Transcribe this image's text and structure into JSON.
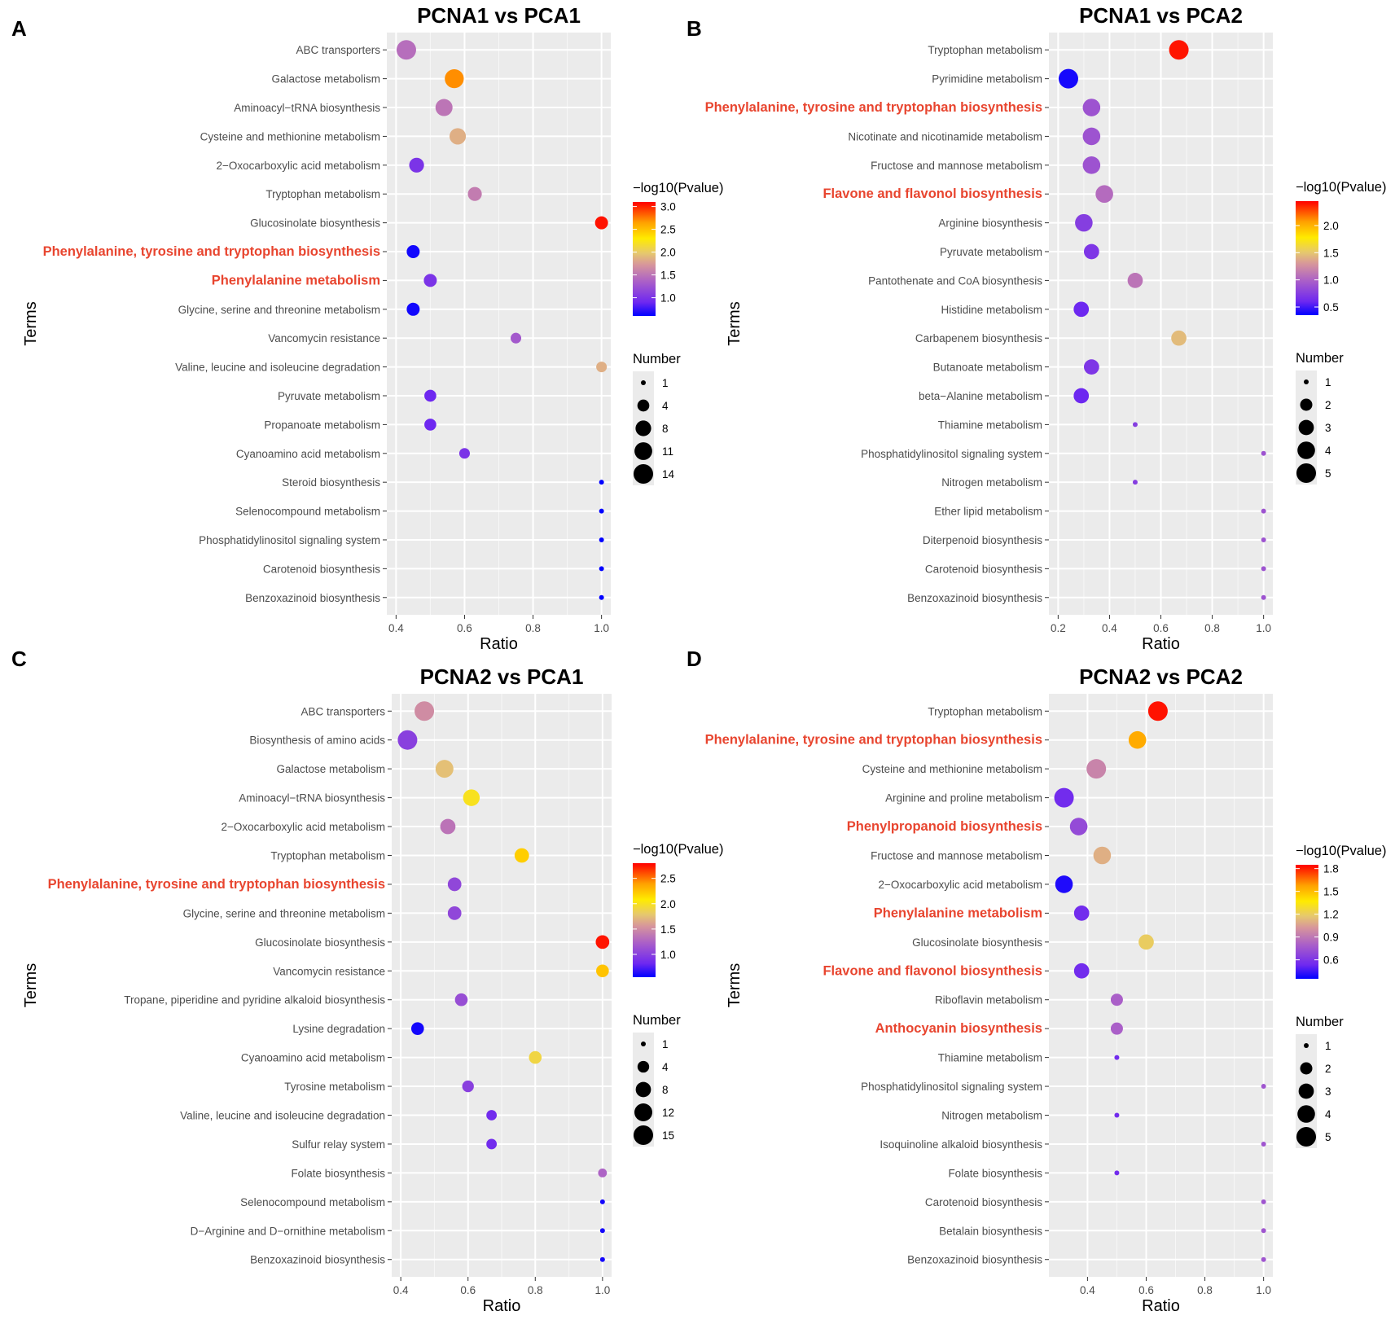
{
  "figure": {
    "legend_color_title": "−log10(Pvalue)",
    "legend_size_title": "Number",
    "xlabel": "Ratio",
    "ylabel": "Terms"
  },
  "chart_data": [
    {
      "type": "scatter",
      "panel": "A",
      "title": "PCNA1 vs PCA1",
      "xlabel": "Ratio",
      "ylabel": "Terms",
      "xlim": [
        0.4,
        1.0
      ],
      "xticks": [
        "0.4",
        "0.6",
        "0.8",
        "1.0"
      ],
      "color_scale": {
        "min": 0.6,
        "max": 3.1,
        "ticks": [
          "3.0",
          "2.5",
          "2.0",
          "1.5",
          "1.0"
        ]
      },
      "size_scale": {
        "min": 1,
        "max": 14,
        "ticks": [
          "1",
          "4",
          "8",
          "11",
          "14"
        ]
      },
      "terms": [
        {
          "name": "ABC transporters",
          "ratio": 0.43,
          "pvalue": 1.45,
          "number": 14,
          "highlight": false
        },
        {
          "name": "Galactose metabolism",
          "ratio": 0.57,
          "pvalue": 2.7,
          "number": 13,
          "highlight": false
        },
        {
          "name": "Aminoacyl−tRNA biosynthesis",
          "ratio": 0.54,
          "pvalue": 1.5,
          "number": 10,
          "highlight": false
        },
        {
          "name": "Cysteine and methionine metabolism",
          "ratio": 0.58,
          "pvalue": 1.85,
          "number": 9,
          "highlight": false
        },
        {
          "name": "2−Oxocarboxylic acid metabolism",
          "ratio": 0.46,
          "pvalue": 1.0,
          "number": 7,
          "highlight": false
        },
        {
          "name": "Tryptophan metabolism",
          "ratio": 0.63,
          "pvalue": 1.55,
          "number": 6,
          "highlight": false
        },
        {
          "name": "Glucosinolate biosynthesis",
          "ratio": 1.0,
          "pvalue": 3.05,
          "number": 5,
          "highlight": false
        },
        {
          "name": "Phenylalanine, tyrosine and tryptophan biosynthesis",
          "ratio": 0.45,
          "pvalue": 0.65,
          "number": 5,
          "highlight": true
        },
        {
          "name": "Phenylalanine metabolism",
          "ratio": 0.5,
          "pvalue": 1.0,
          "number": 5,
          "highlight": true
        },
        {
          "name": "Glycine, serine and threonine metabolism",
          "ratio": 0.45,
          "pvalue": 0.65,
          "number": 5,
          "highlight": false
        },
        {
          "name": "Vancomycin resistance",
          "ratio": 0.75,
          "pvalue": 1.3,
          "number": 3,
          "highlight": false
        },
        {
          "name": "Valine, leucine and isoleucine degradation",
          "ratio": 1.0,
          "pvalue": 1.85,
          "number": 3,
          "highlight": false
        },
        {
          "name": "Pyruvate metabolism",
          "ratio": 0.5,
          "pvalue": 0.9,
          "number": 4,
          "highlight": false
        },
        {
          "name": "Propanoate metabolism",
          "ratio": 0.5,
          "pvalue": 0.9,
          "number": 4,
          "highlight": false
        },
        {
          "name": "Cyanoamino acid metabolism",
          "ratio": 0.6,
          "pvalue": 1.0,
          "number": 3,
          "highlight": false
        },
        {
          "name": "Steroid biosynthesis",
          "ratio": 1.0,
          "pvalue": 0.6,
          "number": 1,
          "highlight": false
        },
        {
          "name": "Selenocompound metabolism",
          "ratio": 1.0,
          "pvalue": 0.6,
          "number": 1,
          "highlight": false
        },
        {
          "name": "Phosphatidylinositol signaling system",
          "ratio": 1.0,
          "pvalue": 0.6,
          "number": 1,
          "highlight": false
        },
        {
          "name": "Carotenoid biosynthesis",
          "ratio": 1.0,
          "pvalue": 0.6,
          "number": 1,
          "highlight": false
        },
        {
          "name": "Benzoxazinoid biosynthesis",
          "ratio": 1.0,
          "pvalue": 0.6,
          "number": 1,
          "highlight": false
        }
      ]
    },
    {
      "type": "scatter",
      "panel": "B",
      "title": "PCNA1 vs PCA2",
      "xlabel": "Ratio",
      "ylabel": "Terms",
      "xlim": [
        0.2,
        1.0
      ],
      "xticks": [
        "0.2",
        "0.4",
        "0.6",
        "0.8",
        "1.0"
      ],
      "color_scale": {
        "min": 0.35,
        "max": 2.45,
        "ticks": [
          "2.0",
          "1.5",
          "1.0",
          "0.5"
        ]
      },
      "size_scale": {
        "min": 1,
        "max": 5,
        "ticks": [
          "1",
          "2",
          "3",
          "4",
          "5"
        ]
      },
      "terms": [
        {
          "name": "Tryptophan metabolism",
          "ratio": 0.67,
          "pvalue": 2.4,
          "number": 5,
          "highlight": false
        },
        {
          "name": "Pyrimidine metabolism",
          "ratio": 0.24,
          "pvalue": 0.4,
          "number": 5,
          "highlight": false
        },
        {
          "name": "Phenylalanine, tyrosine and tryptophan biosynthesis",
          "ratio": 0.33,
          "pvalue": 0.9,
          "number": 4,
          "highlight": true
        },
        {
          "name": "Nicotinate and nicotinamide metabolism",
          "ratio": 0.33,
          "pvalue": 0.9,
          "number": 4,
          "highlight": false
        },
        {
          "name": "Fructose and mannose metabolism",
          "ratio": 0.33,
          "pvalue": 0.9,
          "number": 4,
          "highlight": false
        },
        {
          "name": "Flavone and flavonol biosynthesis",
          "ratio": 0.38,
          "pvalue": 1.05,
          "number": 4,
          "highlight": true
        },
        {
          "name": "Arginine biosynthesis",
          "ratio": 0.3,
          "pvalue": 0.75,
          "number": 4,
          "highlight": false
        },
        {
          "name": "Pyruvate metabolism",
          "ratio": 0.33,
          "pvalue": 0.7,
          "number": 3,
          "highlight": false
        },
        {
          "name": "Pantothenate and CoA biosynthesis",
          "ratio": 0.5,
          "pvalue": 1.1,
          "number": 3,
          "highlight": false
        },
        {
          "name": "Histidine metabolism",
          "ratio": 0.29,
          "pvalue": 0.6,
          "number": 3,
          "highlight": false
        },
        {
          "name": "Carbapenem biosynthesis",
          "ratio": 0.67,
          "pvalue": 1.45,
          "number": 3,
          "highlight": false
        },
        {
          "name": "Butanoate metabolism",
          "ratio": 0.33,
          "pvalue": 0.7,
          "number": 3,
          "highlight": false
        },
        {
          "name": "beta−Alanine metabolism",
          "ratio": 0.29,
          "pvalue": 0.6,
          "number": 3,
          "highlight": false
        },
        {
          "name": "Thiamine metabolism",
          "ratio": 0.5,
          "pvalue": 0.75,
          "number": 1,
          "highlight": false
        },
        {
          "name": "Phosphatidylinositol signaling system",
          "ratio": 1.0,
          "pvalue": 0.9,
          "number": 1,
          "highlight": false
        },
        {
          "name": "Nitrogen metabolism",
          "ratio": 0.5,
          "pvalue": 0.75,
          "number": 1,
          "highlight": false
        },
        {
          "name": "Ether lipid metabolism",
          "ratio": 1.0,
          "pvalue": 0.9,
          "number": 1,
          "highlight": false
        },
        {
          "name": "Diterpenoid biosynthesis",
          "ratio": 1.0,
          "pvalue": 0.9,
          "number": 1,
          "highlight": false
        },
        {
          "name": "Carotenoid biosynthesis",
          "ratio": 1.0,
          "pvalue": 0.9,
          "number": 1,
          "highlight": false
        },
        {
          "name": "Benzoxazinoid biosynthesis",
          "ratio": 1.0,
          "pvalue": 0.9,
          "number": 1,
          "highlight": false
        }
      ]
    },
    {
      "type": "scatter",
      "panel": "C",
      "title": "PCNA2 vs PCA1",
      "xlabel": "Ratio",
      "ylabel": "Terms",
      "xlim": [
        0.4,
        1.0
      ],
      "xticks": [
        "0.4",
        "0.6",
        "0.8",
        "1.0"
      ],
      "color_scale": {
        "min": 0.55,
        "max": 2.8,
        "ticks": [
          "2.5",
          "2.0",
          "1.5",
          "1.0"
        ]
      },
      "size_scale": {
        "min": 1,
        "max": 15,
        "ticks": [
          "1",
          "4",
          "8",
          "12",
          "15"
        ]
      },
      "terms": [
        {
          "name": "ABC transporters",
          "ratio": 0.47,
          "pvalue": 1.5,
          "number": 15,
          "highlight": false
        },
        {
          "name": "Biosynthesis of amino acids",
          "ratio": 0.42,
          "pvalue": 1.0,
          "number": 15,
          "highlight": false
        },
        {
          "name": "Galactose metabolism",
          "ratio": 0.53,
          "pvalue": 1.75,
          "number": 12,
          "highlight": false
        },
        {
          "name": "Aminoacyl−tRNA biosynthesis",
          "ratio": 0.61,
          "pvalue": 2.0,
          "number": 10,
          "highlight": false
        },
        {
          "name": "2−Oxocarboxylic acid metabolism",
          "ratio": 0.54,
          "pvalue": 1.35,
          "number": 8,
          "highlight": false
        },
        {
          "name": "Tryptophan metabolism",
          "ratio": 0.76,
          "pvalue": 2.2,
          "number": 7,
          "highlight": false
        },
        {
          "name": "Phenylalanine, tyrosine and tryptophan biosynthesis",
          "ratio": 0.56,
          "pvalue": 1.05,
          "number": 6,
          "highlight": true
        },
        {
          "name": "Glycine, serine and threonine metabolism",
          "ratio": 0.56,
          "pvalue": 1.05,
          "number": 6,
          "highlight": false
        },
        {
          "name": "Glucosinolate biosynthesis",
          "ratio": 1.0,
          "pvalue": 2.75,
          "number": 6,
          "highlight": false
        },
        {
          "name": "Vancomycin resistance",
          "ratio": 1.0,
          "pvalue": 2.25,
          "number": 5,
          "highlight": false
        },
        {
          "name": "Tropane, piperidine and pyridine alkaloid biosynthesis",
          "ratio": 0.58,
          "pvalue": 1.1,
          "number": 5,
          "highlight": false
        },
        {
          "name": "Lysine degradation",
          "ratio": 0.45,
          "pvalue": 0.6,
          "number": 5,
          "highlight": false
        },
        {
          "name": "Cyanoamino acid metabolism",
          "ratio": 0.8,
          "pvalue": 1.9,
          "number": 5,
          "highlight": false
        },
        {
          "name": "Tyrosine metabolism",
          "ratio": 0.6,
          "pvalue": 1.0,
          "number": 4,
          "highlight": false
        },
        {
          "name": "Valine, leucine and isoleucine degradation",
          "ratio": 0.67,
          "pvalue": 0.85,
          "number": 3,
          "highlight": false
        },
        {
          "name": "Sulfur relay system",
          "ratio": 0.67,
          "pvalue": 0.85,
          "number": 3,
          "highlight": false
        },
        {
          "name": "Folate biosynthesis",
          "ratio": 1.0,
          "pvalue": 1.25,
          "number": 2,
          "highlight": false
        },
        {
          "name": "Selenocompound metabolism",
          "ratio": 1.0,
          "pvalue": 0.6,
          "number": 1,
          "highlight": false
        },
        {
          "name": "D−Arginine and D−ornithine metabolism",
          "ratio": 1.0,
          "pvalue": 0.6,
          "number": 1,
          "highlight": false
        },
        {
          "name": "Benzoxazinoid biosynthesis",
          "ratio": 1.0,
          "pvalue": 0.6,
          "number": 1,
          "highlight": false
        }
      ]
    },
    {
      "type": "scatter",
      "panel": "D",
      "title": "PCNA2 vs PCA2",
      "xlabel": "Ratio",
      "ylabel": "Terms",
      "xlim": [
        0.3,
        1.0
      ],
      "xticks": [
        "0.4",
        "0.6",
        "0.8",
        "1.0"
      ],
      "color_scale": {
        "min": 0.35,
        "max": 1.85,
        "ticks": [
          "1.8",
          "1.5",
          "1.2",
          "0.9",
          "0.6"
        ]
      },
      "size_scale": {
        "min": 1,
        "max": 5,
        "ticks": [
          "1",
          "2",
          "3",
          "4",
          "5"
        ]
      },
      "terms": [
        {
          "name": "Tryptophan metabolism",
          "ratio": 0.64,
          "pvalue": 1.82,
          "number": 5,
          "highlight": false
        },
        {
          "name": "Phenylalanine, tyrosine and tryptophan biosynthesis",
          "ratio": 0.57,
          "pvalue": 1.55,
          "number": 4,
          "highlight": true
        },
        {
          "name": "Cysteine and methionine metabolism",
          "ratio": 0.43,
          "pvalue": 0.95,
          "number": 5,
          "highlight": false
        },
        {
          "name": "Arginine and proline metabolism",
          "ratio": 0.32,
          "pvalue": 0.55,
          "number": 5,
          "highlight": false
        },
        {
          "name": "Phenylpropanoid biosynthesis",
          "ratio": 0.37,
          "pvalue": 0.7,
          "number": 4,
          "highlight": true
        },
        {
          "name": "Fructose and mannose metabolism",
          "ratio": 0.45,
          "pvalue": 1.1,
          "number": 4,
          "highlight": false
        },
        {
          "name": "2−Oxocarboxylic acid metabolism",
          "ratio": 0.32,
          "pvalue": 0.4,
          "number": 4,
          "highlight": false
        },
        {
          "name": "Phenylalanine metabolism",
          "ratio": 0.38,
          "pvalue": 0.55,
          "number": 3,
          "highlight": true
        },
        {
          "name": "Glucosinolate biosynthesis",
          "ratio": 0.6,
          "pvalue": 1.2,
          "number": 3,
          "highlight": false
        },
        {
          "name": "Flavone and flavonol biosynthesis",
          "ratio": 0.38,
          "pvalue": 0.55,
          "number": 3,
          "highlight": true
        },
        {
          "name": "Riboflavin metabolism",
          "ratio": 0.5,
          "pvalue": 0.8,
          "number": 2,
          "highlight": false
        },
        {
          "name": "Anthocyanin biosynthesis",
          "ratio": 0.5,
          "pvalue": 0.8,
          "number": 2,
          "highlight": true
        },
        {
          "name": "Thiamine metabolism",
          "ratio": 0.5,
          "pvalue": 0.55,
          "number": 1,
          "highlight": false
        },
        {
          "name": "Phosphatidylinositol signaling system",
          "ratio": 1.0,
          "pvalue": 0.75,
          "number": 1,
          "highlight": false
        },
        {
          "name": "Nitrogen metabolism",
          "ratio": 0.5,
          "pvalue": 0.55,
          "number": 1,
          "highlight": false
        },
        {
          "name": "Isoquinoline alkaloid biosynthesis",
          "ratio": 1.0,
          "pvalue": 0.75,
          "number": 1,
          "highlight": false
        },
        {
          "name": "Folate biosynthesis",
          "ratio": 0.5,
          "pvalue": 0.55,
          "number": 1,
          "highlight": false
        },
        {
          "name": "Carotenoid biosynthesis",
          "ratio": 1.0,
          "pvalue": 0.75,
          "number": 1,
          "highlight": false
        },
        {
          "name": "Betalain biosynthesis",
          "ratio": 1.0,
          "pvalue": 0.75,
          "number": 1,
          "highlight": false
        },
        {
          "name": "Benzoxazinoid biosynthesis",
          "ratio": 1.0,
          "pvalue": 0.75,
          "number": 1,
          "highlight": false
        }
      ]
    }
  ]
}
